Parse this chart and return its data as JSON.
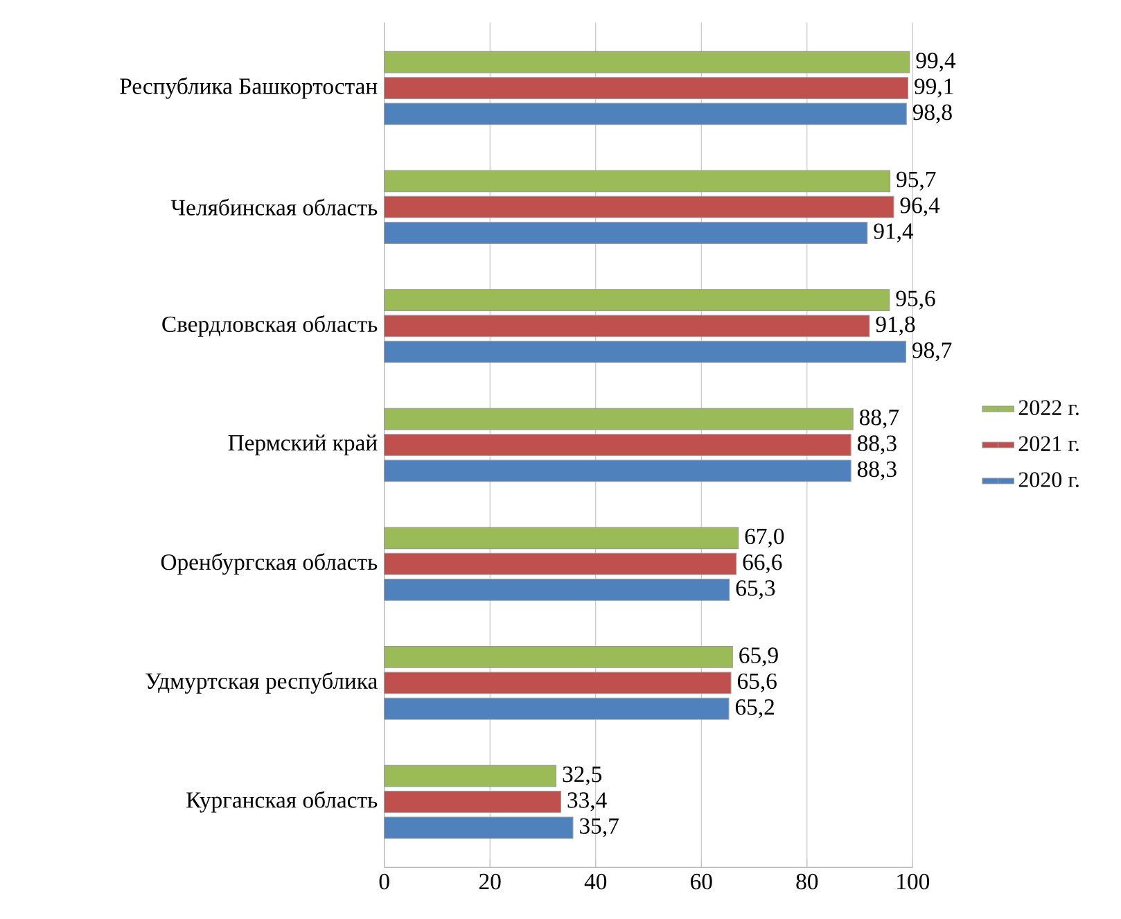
{
  "chart_data": {
    "type": "bar",
    "orientation": "horizontal",
    "categories": [
      "Республика Башкортостан",
      "Челябинская область",
      "Свердловская область",
      "Пермский край",
      "Оренбургская область",
      "Удмуртская республика",
      "Курганская область"
    ],
    "series": [
      {
        "name": "2020 г.",
        "color": "#4f81bd",
        "values": [
          98.8,
          91.4,
          98.7,
          88.3,
          65.3,
          65.2,
          35.7
        ],
        "value_labels": [
          "98,8",
          "91,4",
          "98,7",
          "88,3",
          "65,3",
          "65,2",
          "35,7"
        ]
      },
      {
        "name": "2021 г.",
        "color": "#c0504d",
        "values": [
          99.1,
          96.4,
          91.8,
          88.3,
          66.6,
          65.6,
          33.4
        ],
        "value_labels": [
          "99,1",
          "96,4",
          "91,8",
          "88,3",
          "66,6",
          "65,6",
          "33,4"
        ]
      },
      {
        "name": "2022 г.",
        "color": "#9bbb59",
        "values": [
          99.4,
          95.7,
          95.6,
          88.7,
          67.0,
          65.9,
          32.5
        ],
        "value_labels": [
          "99,4",
          "95,7",
          "95,6",
          "88,7",
          "67,0",
          "65,9",
          "32,5"
        ]
      }
    ],
    "xlim": [
      0,
      100
    ],
    "xticks": [
      0,
      20,
      40,
      60,
      80,
      100
    ],
    "grid": "x",
    "legend": "right"
  }
}
